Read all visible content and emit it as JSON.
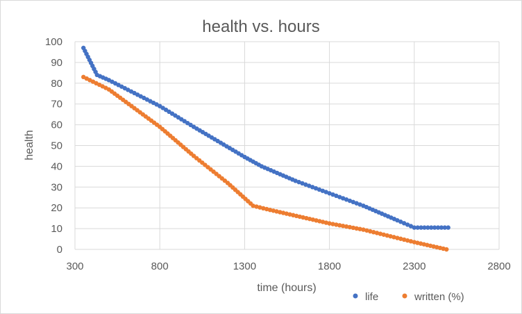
{
  "chart_data": {
    "type": "scatter",
    "title": "health vs. hours",
    "xlabel": "time (hours)",
    "ylabel": "health",
    "xlim": [
      300,
      2800
    ],
    "ylim": [
      0,
      100
    ],
    "x_ticks": [
      "300",
      "800",
      "1300",
      "1800",
      "2300",
      "2800"
    ],
    "y_ticks": [
      "0",
      "10",
      "20",
      "30",
      "40",
      "50",
      "60",
      "70",
      "80",
      "90",
      "100"
    ],
    "grid": true,
    "legend_position": "bottom-right",
    "series": [
      {
        "name": "life",
        "color": "#4472C4",
        "points": [
          [
            350,
            97
          ],
          [
            430,
            84
          ],
          [
            500,
            81.5
          ],
          [
            800,
            69
          ],
          [
            1000,
            59
          ],
          [
            1300,
            44.5
          ],
          [
            1400,
            40
          ],
          [
            1600,
            33
          ],
          [
            1800,
            27
          ],
          [
            2000,
            21
          ],
          [
            2200,
            14
          ],
          [
            2300,
            10.5
          ],
          [
            2500,
            10.5
          ]
        ]
      },
      {
        "name": "written (%)",
        "color": "#ED7D31",
        "points": [
          [
            350,
            83
          ],
          [
            500,
            77
          ],
          [
            800,
            59
          ],
          [
            1000,
            45
          ],
          [
            1200,
            32
          ],
          [
            1350,
            21
          ],
          [
            1450,
            19
          ],
          [
            1800,
            12.5
          ],
          [
            2000,
            9.5
          ],
          [
            2300,
            3.5
          ],
          [
            2490,
            0
          ]
        ]
      }
    ]
  }
}
